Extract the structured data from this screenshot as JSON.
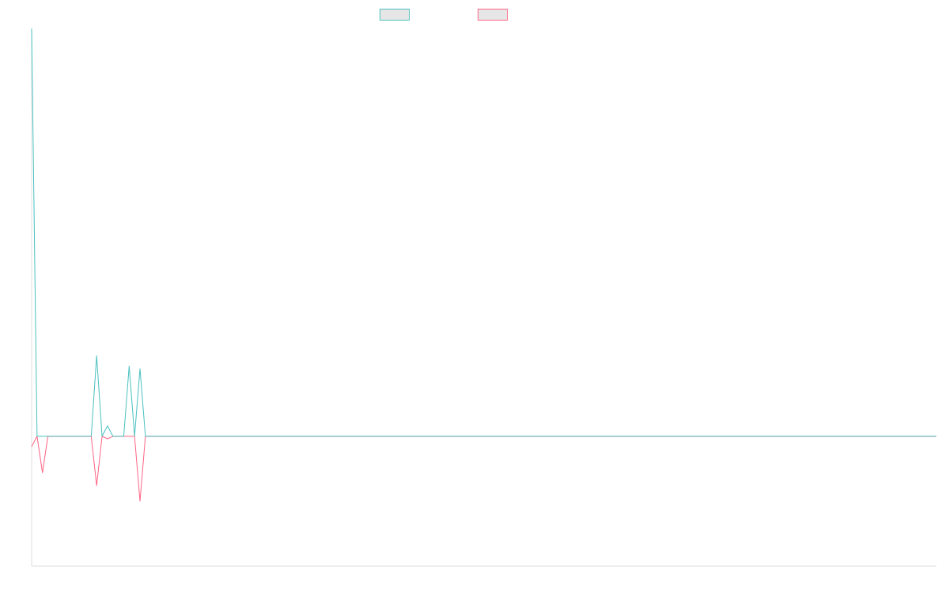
{
  "chart_data": {
    "type": "line",
    "title": "",
    "xlabel": "",
    "ylabel": "",
    "grid": false,
    "legend_position": "top",
    "x": [
      0,
      1,
      2,
      3,
      4,
      5,
      6,
      7,
      8,
      9,
      10,
      11,
      12,
      13,
      14,
      15,
      16,
      17,
      18,
      19,
      20,
      21,
      22,
      23,
      24,
      25,
      26,
      27,
      28,
      29,
      30,
      31,
      32,
      33,
      34,
      35,
      36,
      37,
      38,
      39,
      40,
      41,
      42,
      43,
      44,
      45,
      46,
      47,
      48,
      49,
      50,
      51,
      52,
      53,
      54,
      55,
      56,
      57,
      58,
      59,
      60,
      61,
      62,
      63,
      64,
      65,
      66,
      67,
      68,
      69,
      70,
      71,
      72,
      73,
      74,
      75,
      76,
      77,
      78,
      79,
      80,
      81,
      82,
      83,
      84,
      85,
      86,
      87,
      88,
      89,
      90,
      91,
      92,
      93,
      94,
      95,
      96,
      97,
      98,
      99,
      100,
      101,
      102,
      103,
      104,
      105,
      106,
      107,
      108,
      109,
      110,
      111,
      112,
      113,
      114,
      115,
      116,
      117,
      118,
      119,
      120,
      121,
      122,
      123,
      124,
      125,
      126,
      127,
      128,
      129,
      130,
      131,
      132,
      133,
      134,
      135,
      136,
      137,
      138,
      139,
      140,
      141,
      142,
      143,
      144,
      145,
      146,
      147,
      148,
      149,
      150,
      151,
      152,
      153,
      154,
      155,
      156,
      157,
      158,
      159,
      160,
      161,
      162,
      163,
      164,
      165,
      166,
      167
    ],
    "ylim": [
      -50,
      157
    ],
    "series": [
      {
        "name": "",
        "color": "#4bc0c0",
        "values": [
          157,
          0,
          0,
          0,
          0,
          0,
          0,
          0,
          0,
          0,
          0,
          0,
          31,
          0,
          4,
          0,
          0,
          0,
          27,
          0,
          26,
          0,
          0,
          0,
          0,
          0,
          0,
          0,
          0,
          0,
          0,
          0,
          0,
          0,
          0,
          0,
          0,
          0,
          0,
          0,
          0,
          0,
          0,
          0,
          0,
          0,
          0,
          0,
          0,
          0,
          0,
          0,
          0,
          0,
          0,
          0,
          0,
          0,
          0,
          0,
          0,
          0,
          0,
          0,
          0,
          0,
          0,
          0,
          0,
          0,
          0,
          0,
          0,
          0,
          0,
          0,
          0,
          0,
          0,
          0,
          0,
          0,
          0,
          0,
          0,
          0,
          0,
          0,
          0,
          0,
          0,
          0,
          0,
          0,
          0,
          0,
          0,
          0,
          0,
          0,
          0,
          0,
          0,
          0,
          0,
          0,
          0,
          0,
          0,
          0,
          0,
          0,
          0,
          0,
          0,
          0,
          0,
          0,
          0,
          0,
          0,
          0,
          0,
          0,
          0,
          0,
          0,
          0,
          0,
          0,
          0,
          0,
          0,
          0,
          0,
          0,
          0,
          0,
          0,
          0,
          0,
          0,
          0,
          0,
          0,
          0,
          0,
          0,
          0,
          0,
          0,
          0,
          0,
          0,
          0,
          0,
          0,
          0,
          0,
          0,
          0,
          0,
          0,
          0,
          0,
          0,
          0,
          0
        ]
      },
      {
        "name": "",
        "color": "#ff6384",
        "values": [
          -4,
          0,
          -14,
          0,
          0,
          0,
          0,
          0,
          0,
          0,
          0,
          0,
          -19,
          0,
          -1,
          0,
          0,
          0,
          0,
          0,
          -25,
          0,
          0,
          0,
          0,
          0,
          0,
          0,
          0,
          0,
          0,
          0,
          0,
          0,
          0,
          0,
          0,
          0,
          0,
          0,
          0,
          0,
          0,
          0,
          0,
          0,
          0,
          0,
          0,
          0,
          0,
          0,
          0,
          0,
          0,
          0,
          0,
          0,
          0,
          0,
          0,
          0,
          0,
          0,
          0,
          0,
          0,
          0,
          0,
          0,
          0,
          0,
          0,
          0,
          0,
          0,
          0,
          0,
          0,
          0,
          0,
          0,
          0,
          0,
          0,
          0,
          0,
          0,
          0,
          0,
          0,
          0,
          0,
          0,
          0,
          0,
          0,
          0,
          0,
          0,
          0,
          0,
          0,
          0,
          0,
          0,
          0,
          0,
          0,
          0,
          0,
          0,
          0,
          0,
          0,
          0,
          0,
          0,
          0,
          0,
          0,
          0,
          0,
          0,
          0,
          0,
          0,
          0,
          0,
          0,
          0,
          0,
          0,
          0,
          0,
          0,
          0,
          0,
          0,
          0,
          0,
          0,
          0,
          0,
          0,
          0,
          0,
          0,
          0,
          0,
          0,
          0,
          0,
          0,
          0,
          0,
          0,
          0,
          0,
          0,
          0,
          0,
          0,
          0,
          0,
          0,
          0,
          0
        ]
      }
    ]
  }
}
